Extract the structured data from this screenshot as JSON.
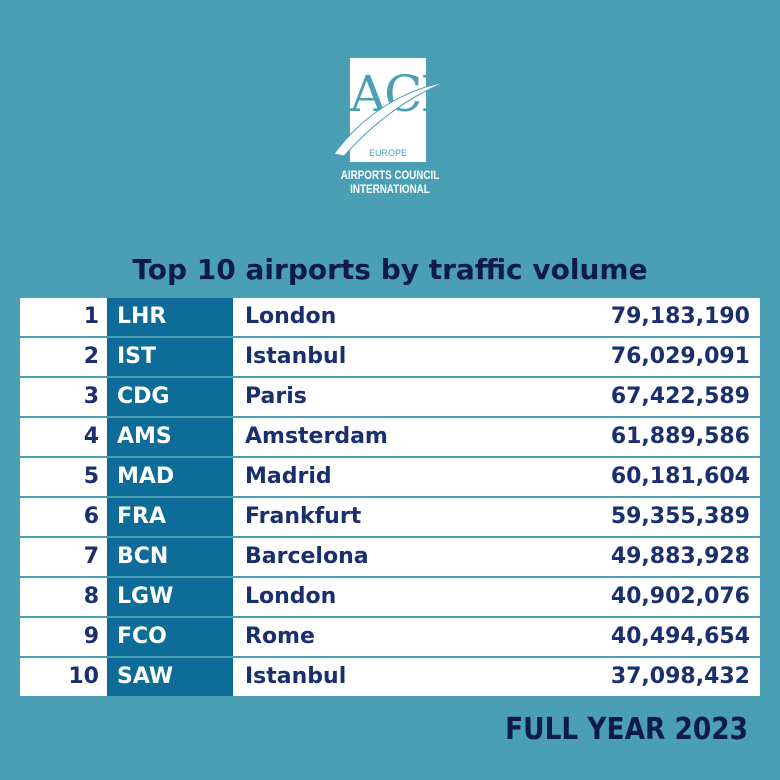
{
  "logo": {
    "letters": "ACI",
    "region": "EUROPE",
    "name_line1": "AIRPORTS COUNCIL",
    "name_line2": "INTERNATIONAL"
  },
  "title": "Top 10 airports by traffic volume",
  "footer": "FULL YEAR 2023",
  "colors": {
    "background": "#4a9fb5",
    "code_cell": "#0e6c98",
    "text_dark": "#1a2f6e",
    "title": "#0d1b4a"
  },
  "chart_data": {
    "type": "table",
    "title": "Top 10 airports by traffic volume",
    "rows": [
      {
        "rank": "1",
        "code": "LHR",
        "city": "London",
        "passengers": "79,183,190"
      },
      {
        "rank": "2",
        "code": "IST",
        "city": "Istanbul",
        "passengers": "76,029,091"
      },
      {
        "rank": "3",
        "code": "CDG",
        "city": "Paris",
        "passengers": "67,422,589"
      },
      {
        "rank": "4",
        "code": "AMS",
        "city": "Amsterdam",
        "passengers": "61,889,586"
      },
      {
        "rank": "5",
        "code": "MAD",
        "city": "Madrid",
        "passengers": "60,181,604"
      },
      {
        "rank": "6",
        "code": "FRA",
        "city": "Frankfurt",
        "passengers": "59,355,389"
      },
      {
        "rank": "7",
        "code": "BCN",
        "city": "Barcelona",
        "passengers": "49,883,928"
      },
      {
        "rank": "8",
        "code": "LGW",
        "city": "London",
        "passengers": "40,902,076"
      },
      {
        "rank": "9",
        "code": "FCO",
        "city": "Rome",
        "passengers": "40,494,654"
      },
      {
        "rank": "10",
        "code": "SAW",
        "city": "Istanbul",
        "passengers": "37,098,432"
      }
    ]
  }
}
